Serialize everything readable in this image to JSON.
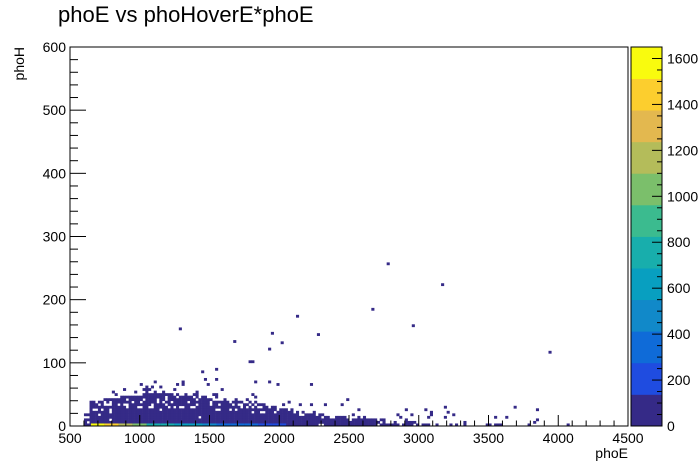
{
  "chart_data": {
    "type": "heatmap",
    "title": "phoE vs phoHoverE*phoE",
    "xlabel": "phoE",
    "ylabel": "phoH",
    "xlim": [
      500,
      4500
    ],
    "ylim": [
      0,
      600
    ],
    "x_ticks": [
      500,
      1000,
      1500,
      2000,
      2500,
      3000,
      3500,
      4000,
      4500
    ],
    "y_ticks": [
      0,
      100,
      200,
      300,
      400,
      500,
      600
    ],
    "colorbar": {
      "range": [
        0,
        1650
      ],
      "ticks": [
        0,
        200,
        400,
        600,
        800,
        1000,
        1200,
        1400,
        1600
      ],
      "palette": [
        "#352a87",
        "#1f4ce0",
        "#0f6bd8",
        "#1189c9",
        "#089fc0",
        "#18aeac",
        "#3bbb8f",
        "#7bbf6b",
        "#b4bc5a",
        "#e3b84f",
        "#fcce2e",
        "#f9fb0e"
      ]
    },
    "hot_cells": [
      {
        "x": 700,
        "y": 2,
        "count": 1600
      },
      {
        "x": 800,
        "y": 2,
        "count": 1400
      },
      {
        "x": 900,
        "y": 2,
        "count": 1200
      },
      {
        "x": 1000,
        "y": 2,
        "count": 1000
      },
      {
        "x": 1100,
        "y": 2,
        "count": 800
      },
      {
        "x": 1200,
        "y": 2,
        "count": 700
      },
      {
        "x": 1300,
        "y": 2,
        "count": 650
      },
      {
        "x": 1400,
        "y": 2,
        "count": 600
      },
      {
        "x": 1500,
        "y": 2,
        "count": 500
      },
      {
        "x": 1600,
        "y": 2,
        "count": 400
      },
      {
        "x": 1700,
        "y": 2,
        "count": 350
      },
      {
        "x": 1800,
        "y": 2,
        "count": 300
      },
      {
        "x": 1900,
        "y": 2,
        "count": 250
      },
      {
        "x": 2000,
        "y": 2,
        "count": 200
      }
    ],
    "outliers": [
      {
        "x": 2770,
        "y": 255
      },
      {
        "x": 3160,
        "y": 222
      },
      {
        "x": 2120,
        "y": 172
      },
      {
        "x": 2950,
        "y": 157
      },
      {
        "x": 1280,
        "y": 152
      },
      {
        "x": 1940,
        "y": 145
      },
      {
        "x": 2270,
        "y": 143
      },
      {
        "x": 2660,
        "y": 183
      },
      {
        "x": 3930,
        "y": 115
      },
      {
        "x": 2010,
        "y": 130
      },
      {
        "x": 1670,
        "y": 132
      }
    ]
  }
}
